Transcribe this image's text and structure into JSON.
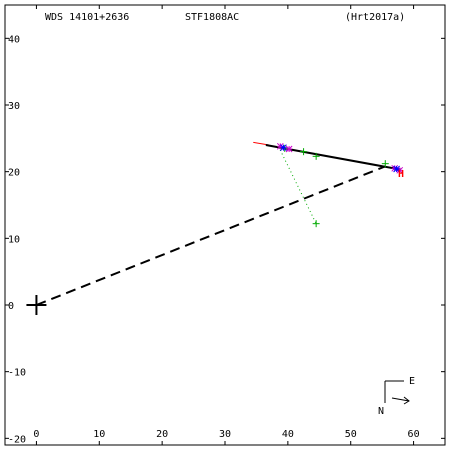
{
  "header": {
    "wds_id": "WDS 14101+2636",
    "discoverer": "STF1808AC",
    "reference": "(Hrt2017a)"
  },
  "chart_data": {
    "type": "scatter",
    "title": "",
    "xlabel": "",
    "ylabel": "",
    "xlim": [
      -5,
      65
    ],
    "ylim": [
      -21,
      45
    ],
    "x_ticks": [
      0,
      10,
      20,
      30,
      40,
      50,
      60
    ],
    "y_ticks": [
      -20,
      -10,
      0,
      10,
      20,
      30,
      40
    ],
    "grid": false,
    "primary_marker": {
      "x": 0,
      "y": 0,
      "symbol": "plus"
    },
    "dashed_line": {
      "from": [
        0,
        0
      ],
      "to": [
        55.5,
        20.8
      ]
    },
    "solid_line": {
      "from": [
        36.5,
        24.0
      ],
      "to": [
        58.0,
        20.3
      ]
    },
    "red_segment": {
      "from": [
        34.5,
        24.4
      ],
      "to": [
        37.0,
        24.0
      ],
      "color": "#ff0000"
    },
    "dotted_line": {
      "from": [
        38.5,
        23.8
      ],
      "to": [
        44.5,
        12.2
      ],
      "color": "#00aa00"
    },
    "series": [
      {
        "marker": "plus",
        "color": "#00aa00",
        "points": [
          [
            42.5,
            23.0
          ],
          [
            44.5,
            22.3
          ],
          [
            55.5,
            21.2
          ],
          [
            44.5,
            12.2
          ],
          [
            39.5,
            23.5
          ]
        ]
      },
      {
        "marker": "asterisk",
        "color": "#cc00cc",
        "points": [
          [
            38.8,
            23.8
          ],
          [
            40.2,
            23.4
          ],
          [
            57.0,
            20.5
          ],
          [
            57.8,
            20.2
          ]
        ]
      },
      {
        "marker": "asterisk",
        "color": "#0000ff",
        "points": [
          [
            39.3,
            23.6
          ],
          [
            57.3,
            20.4
          ]
        ]
      }
    ],
    "current_marker": {
      "x": 58.0,
      "y": 19.8,
      "symbol": "H",
      "color": "#ff0000"
    },
    "compass": {
      "east_label": "E",
      "north_label": "N"
    }
  }
}
